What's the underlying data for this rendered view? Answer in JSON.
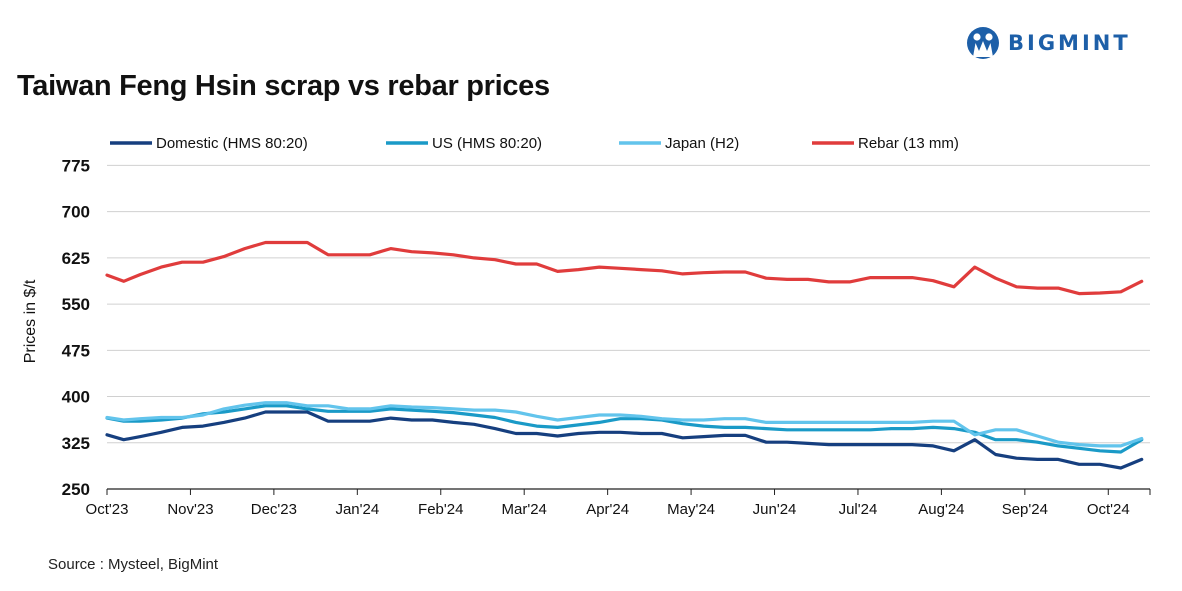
{
  "brand": {
    "name": "BIGMINT",
    "color": "#1d5fa8"
  },
  "title": "Taiwan Feng Hsin scrap vs rebar prices",
  "source": "Source : Mysteel, BigMint",
  "chart_data": {
    "type": "line",
    "title": "Taiwan Feng Hsin scrap vs rebar prices",
    "ylabel": "Prices in $/t",
    "xlabel": "",
    "ylim": [
      250,
      800
    ],
    "yticks": [
      250,
      325,
      400,
      475,
      550,
      625,
      700,
      775
    ],
    "xlim": [
      0,
      12.5
    ],
    "xticks": [
      {
        "label": "Oct'23",
        "x": 0
      },
      {
        "label": "Nov'23",
        "x": 1
      },
      {
        "label": "Dec'23",
        "x": 2
      },
      {
        "label": "Jan'24",
        "x": 3
      },
      {
        "label": "Feb'24",
        "x": 4
      },
      {
        "label": "Mar'24",
        "x": 5
      },
      {
        "label": "Apr'24",
        "x": 6
      },
      {
        "label": "May'24",
        "x": 7
      },
      {
        "label": "Jun'24",
        "x": 8
      },
      {
        "label": "Jul'24",
        "x": 9
      },
      {
        "label": "Aug'24",
        "x": 10
      },
      {
        "label": "Sep'24",
        "x": 11
      },
      {
        "label": "Oct'24",
        "x": 12
      }
    ],
    "grid": "horizontal",
    "legend_position": "top",
    "x": [
      0,
      0.2,
      0.4,
      0.65,
      0.9,
      1.15,
      1.4,
      1.65,
      1.9,
      2.15,
      2.4,
      2.65,
      2.9,
      3.15,
      3.4,
      3.65,
      3.9,
      4.15,
      4.4,
      4.65,
      4.9,
      5.15,
      5.4,
      5.65,
      5.9,
      6.15,
      6.4,
      6.65,
      6.9,
      7.15,
      7.4,
      7.65,
      7.9,
      8.15,
      8.4,
      8.65,
      8.9,
      9.15,
      9.4,
      9.65,
      9.9,
      10.15,
      10.4,
      10.65,
      10.9,
      11.15,
      11.4,
      11.65,
      11.9,
      12.15,
      12.4
    ],
    "series": [
      {
        "name": "Domestic (HMS 80:20)",
        "color": "#163f7f",
        "values": [
          338,
          330,
          335,
          342,
          350,
          352,
          358,
          365,
          375,
          375,
          375,
          360,
          360,
          360,
          365,
          362,
          362,
          358,
          355,
          348,
          340,
          340,
          336,
          340,
          342,
          342,
          340,
          340,
          333,
          335,
          337,
          337,
          326,
          326,
          324,
          322,
          322,
          322,
          322,
          322,
          320,
          312,
          330,
          306,
          300,
          298,
          298,
          290,
          290,
          284,
          298
        ]
      },
      {
        "name": "US (HMS 80:20)",
        "color": "#1a9ac7",
        "values": [
          365,
          360,
          360,
          362,
          365,
          372,
          375,
          380,
          385,
          385,
          380,
          376,
          376,
          376,
          380,
          378,
          376,
          374,
          370,
          366,
          358,
          352,
          350,
          354,
          358,
          364,
          364,
          362,
          356,
          352,
          350,
          350,
          348,
          346,
          346,
          346,
          346,
          346,
          348,
          348,
          350,
          348,
          342,
          330,
          330,
          326,
          320,
          316,
          312,
          310,
          330
        ]
      },
      {
        "name": "Japan (H2)",
        "color": "#62c4ec",
        "values": [
          366,
          362,
          364,
          366,
          366,
          370,
          380,
          386,
          390,
          390,
          385,
          385,
          380,
          380,
          385,
          383,
          382,
          380,
          378,
          378,
          375,
          368,
          362,
          366,
          370,
          370,
          368,
          364,
          362,
          362,
          364,
          364,
          358,
          358,
          358,
          358,
          358,
          358,
          358,
          358,
          360,
          360,
          338,
          346,
          346,
          336,
          326,
          322,
          320,
          320,
          332
        ]
      },
      {
        "name": "Rebar (13 mm)",
        "color": "#e03c3c",
        "values": [
          597,
          587,
          598,
          610,
          618,
          618,
          627,
          640,
          650,
          650,
          650,
          630,
          630,
          630,
          640,
          635,
          633,
          630,
          625,
          622,
          615,
          615,
          603,
          606,
          610,
          608,
          606,
          604,
          599,
          601,
          602,
          602,
          592,
          590,
          590,
          586,
          586,
          593,
          593,
          593,
          588,
          578,
          610,
          592,
          578,
          576,
          576,
          567,
          568,
          570,
          587
        ]
      }
    ]
  }
}
